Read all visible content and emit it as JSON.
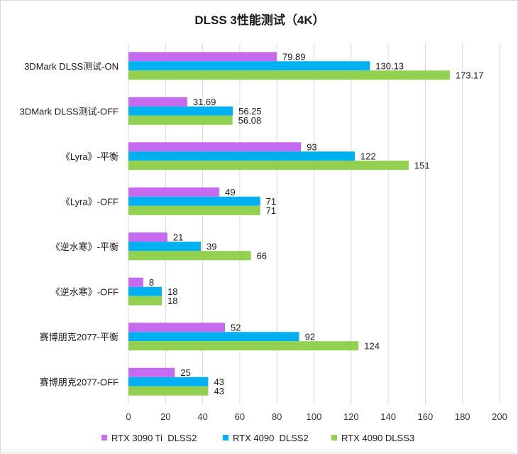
{
  "chart_data": {
    "type": "bar",
    "orientation": "horizontal",
    "title": "DLSS 3性能测试（4K）",
    "categories": [
      "3DMark DLSS测试-ON",
      "3DMark DLSS测试-OFF",
      "《Lyra》-平衡",
      "《Lyra》-OFF",
      "《逆水寒》-平衡",
      "《逆水寒》-OFF",
      "赛博朋克2077-平衡",
      "赛博朋克2077-OFF"
    ],
    "series": [
      {
        "name": "RTX 3090 Ti  DLSS2",
        "color": "#c66bf0",
        "values": [
          79.89,
          31.69,
          93,
          49,
          21,
          8,
          52,
          25
        ],
        "labels": [
          "79.89",
          "31.69",
          "93",
          "49",
          "21",
          "8",
          "52",
          "25"
        ]
      },
      {
        "name": "RTX 4090  DLSS2",
        "color": "#00b0f0",
        "values": [
          130.13,
          56.25,
          122,
          71,
          39,
          18,
          92,
          43
        ],
        "labels": [
          "130.13",
          "56.25",
          "122",
          "71",
          "39",
          "18",
          "92",
          "43"
        ]
      },
      {
        "name": "RTX 4090 DLSS3",
        "color": "#92d050",
        "values": [
          173.17,
          56.08,
          151,
          71,
          66,
          18,
          124,
          43
        ],
        "labels": [
          "173.17",
          "56.08",
          "151",
          "71",
          "66",
          "18",
          "124",
          "43"
        ]
      }
    ],
    "xlim": [
      0,
      200
    ],
    "xticks": [
      0,
      20,
      40,
      60,
      80,
      100,
      120,
      140,
      160,
      180,
      200
    ],
    "xtick_labels": [
      "0",
      "20",
      "40",
      "60",
      "80",
      "100",
      "120",
      "140",
      "160",
      "180",
      "200"
    ],
    "grid": "vertical",
    "grid_color": "#d9d9d9",
    "legend_position": "bottom"
  }
}
